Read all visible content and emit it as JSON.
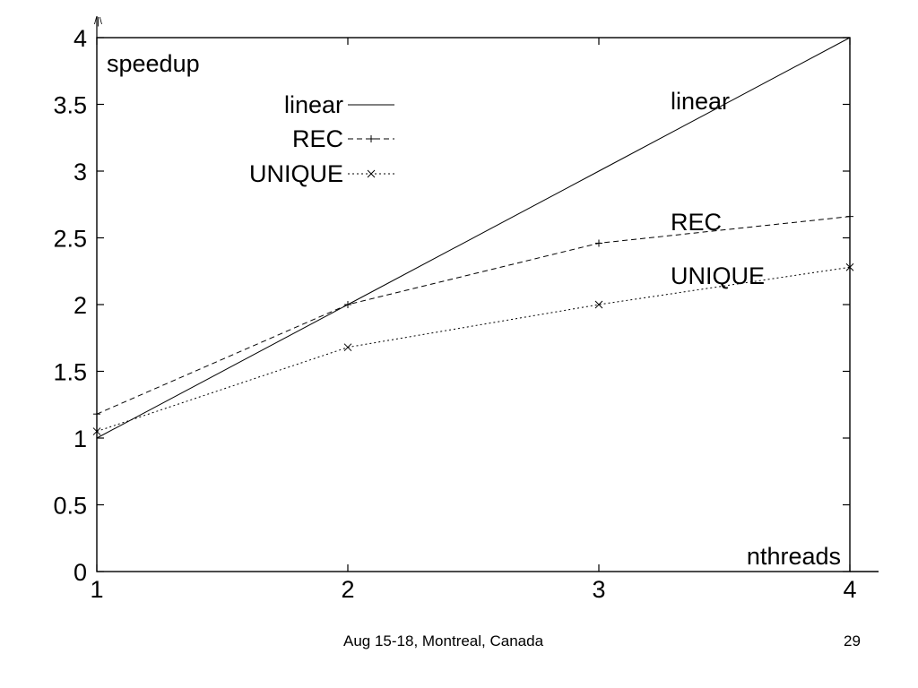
{
  "footer": {
    "venue": "Aug 15-18, Montreal, Canada",
    "page": "29"
  },
  "chart_data": {
    "type": "line",
    "ylabel": "speedup",
    "xlabel": "nthreads",
    "xlim": [
      1,
      4
    ],
    "ylim": [
      0,
      4
    ],
    "x_ticks": [
      "1",
      "2",
      "3",
      "4"
    ],
    "y_ticks": [
      "0",
      "0.5",
      "1",
      "1.5",
      "2",
      "2.5",
      "3",
      "3.5",
      "4"
    ],
    "x_tick_values": [
      1,
      2,
      3,
      4
    ],
    "y_tick_values": [
      0,
      0.5,
      1,
      1.5,
      2,
      2.5,
      3,
      3.5,
      4
    ],
    "grid": false,
    "legend_position": "top-left",
    "series": [
      {
        "name": "linear",
        "x": [
          1,
          2,
          3,
          4
        ],
        "values": [
          1,
          2,
          3,
          4
        ],
        "style": "solid",
        "marker": "none",
        "end_label": "linear"
      },
      {
        "name": "REC",
        "x": [
          1,
          2,
          3,
          4
        ],
        "values": [
          1.18,
          2.0,
          2.46,
          2.66
        ],
        "style": "dashed",
        "marker": "plus",
        "end_label": "REC"
      },
      {
        "name": "UNIQUE",
        "x": [
          1,
          2,
          3,
          4
        ],
        "values": [
          1.05,
          1.68,
          2.0,
          2.28
        ],
        "style": "dotted",
        "marker": "cross",
        "end_label": "UNIQUE"
      }
    ],
    "corner_mark": "/|\\",
    "color": "#000000"
  }
}
